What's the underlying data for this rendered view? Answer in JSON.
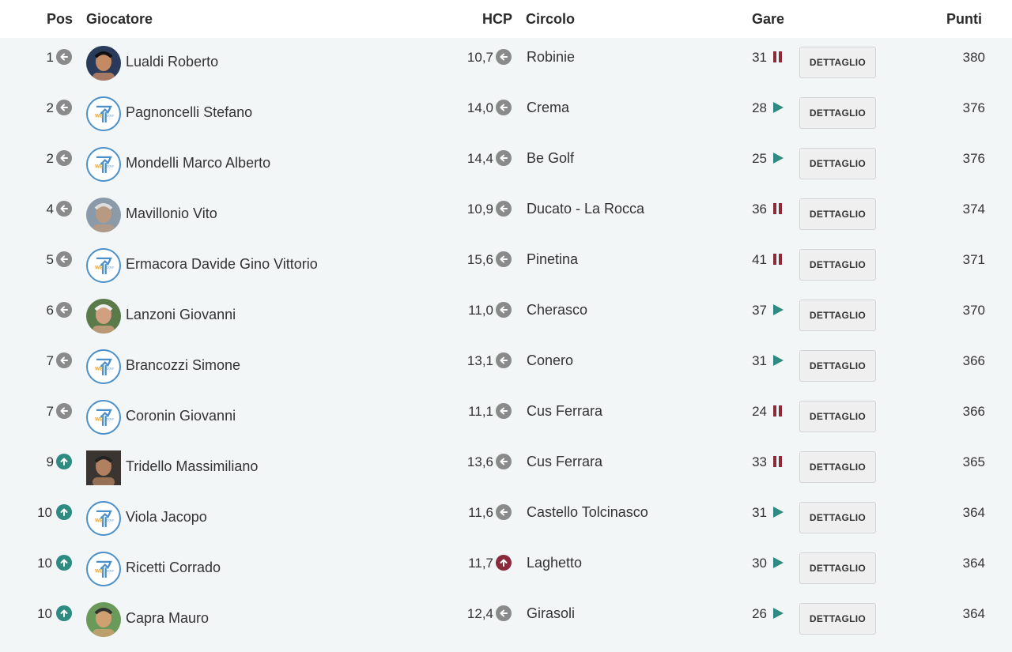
{
  "header": {
    "pos": "Pos",
    "giocatore": "Giocatore",
    "hcp": "HCP",
    "circolo": "Circolo",
    "gare": "Gare",
    "punti": "Punti"
  },
  "colors": {
    "row_bg": "#f2f6f7",
    "neutral_icon": "#8a8a8a",
    "up_icon": "#2e8b82",
    "up_hcp_icon": "#8b2a3a",
    "play_icon": "#2e8b82",
    "pause_icon": "#8b2a3a"
  },
  "button_label": "DETTAGLIO",
  "rows": [
    {
      "pos": "1",
      "pos_trend": "left-arrow-icon",
      "avatar": "photo",
      "name": "Lualdi Roberto",
      "hcp": "10,7",
      "hcp_trend": "left-arrow-icon",
      "circolo": "Robinie",
      "gare": "31",
      "gare_status": "pause-icon",
      "punti": "380"
    },
    {
      "pos": "2",
      "pos_trend": "left-arrow-icon",
      "avatar": "wegolfers-logo",
      "name": "Pagnoncelli Stefano",
      "hcp": "14,0",
      "hcp_trend": "left-arrow-icon",
      "circolo": "Crema",
      "gare": "28",
      "gare_status": "play-icon",
      "punti": "376"
    },
    {
      "pos": "2",
      "pos_trend": "left-arrow-icon",
      "avatar": "wegolfers-logo",
      "name": "Mondelli Marco Alberto",
      "hcp": "14,4",
      "hcp_trend": "left-arrow-icon",
      "circolo": "Be Golf",
      "gare": "25",
      "gare_status": "play-icon",
      "punti": "376"
    },
    {
      "pos": "4",
      "pos_trend": "left-arrow-icon",
      "avatar": "photo",
      "name": "Mavillonio Vito",
      "hcp": "10,9",
      "hcp_trend": "left-arrow-icon",
      "circolo": "Ducato - La Rocca",
      "gare": "36",
      "gare_status": "pause-icon",
      "punti": "374"
    },
    {
      "pos": "5",
      "pos_trend": "left-arrow-icon",
      "avatar": "wegolfers-logo",
      "name": "Ermacora Davide Gino Vittorio",
      "hcp": "15,6",
      "hcp_trend": "left-arrow-icon",
      "circolo": "Pinetina",
      "gare": "41",
      "gare_status": "pause-icon",
      "punti": "371"
    },
    {
      "pos": "6",
      "pos_trend": "left-arrow-icon",
      "avatar": "photo",
      "name": "Lanzoni Giovanni",
      "hcp": "11,0",
      "hcp_trend": "left-arrow-icon",
      "circolo": "Cherasco",
      "gare": "37",
      "gare_status": "play-icon",
      "punti": "370"
    },
    {
      "pos": "7",
      "pos_trend": "left-arrow-icon",
      "avatar": "wegolfers-logo",
      "name": "Brancozzi Simone",
      "hcp": "13,1",
      "hcp_trend": "left-arrow-icon",
      "circolo": "Conero",
      "gare": "31",
      "gare_status": "play-icon",
      "punti": "366"
    },
    {
      "pos": "7",
      "pos_trend": "left-arrow-icon",
      "avatar": "wegolfers-logo",
      "name": "Coronin Giovanni",
      "hcp": "11,1",
      "hcp_trend": "left-arrow-icon",
      "circolo": "Cus Ferrara",
      "gare": "24",
      "gare_status": "pause-icon",
      "punti": "366"
    },
    {
      "pos": "9",
      "pos_trend": "up-arrow-icon",
      "avatar": "photo-square",
      "name": "Tridello Massimiliano",
      "hcp": "13,6",
      "hcp_trend": "left-arrow-icon",
      "circolo": "Cus Ferrara",
      "gare": "33",
      "gare_status": "pause-icon",
      "punti": "365"
    },
    {
      "pos": "10",
      "pos_trend": "up-arrow-icon",
      "avatar": "wegolfers-logo",
      "name": "Viola Jacopo",
      "hcp": "11,6",
      "hcp_trend": "left-arrow-icon",
      "circolo": "Castello Tolcinasco",
      "gare": "31",
      "gare_status": "play-icon",
      "punti": "364"
    },
    {
      "pos": "10",
      "pos_trend": "up-arrow-icon",
      "avatar": "wegolfers-logo",
      "name": "Ricetti Corrado",
      "hcp": "11,7",
      "hcp_trend": "up-arrow-icon",
      "circolo": "Laghetto",
      "gare": "30",
      "gare_status": "play-icon",
      "punti": "364"
    },
    {
      "pos": "10",
      "pos_trend": "up-arrow-icon",
      "avatar": "photo",
      "name": "Capra Mauro",
      "hcp": "12,4",
      "hcp_trend": "left-arrow-icon",
      "circolo": "Girasoli",
      "gare": "26",
      "gare_status": "play-icon",
      "punti": "364"
    }
  ]
}
